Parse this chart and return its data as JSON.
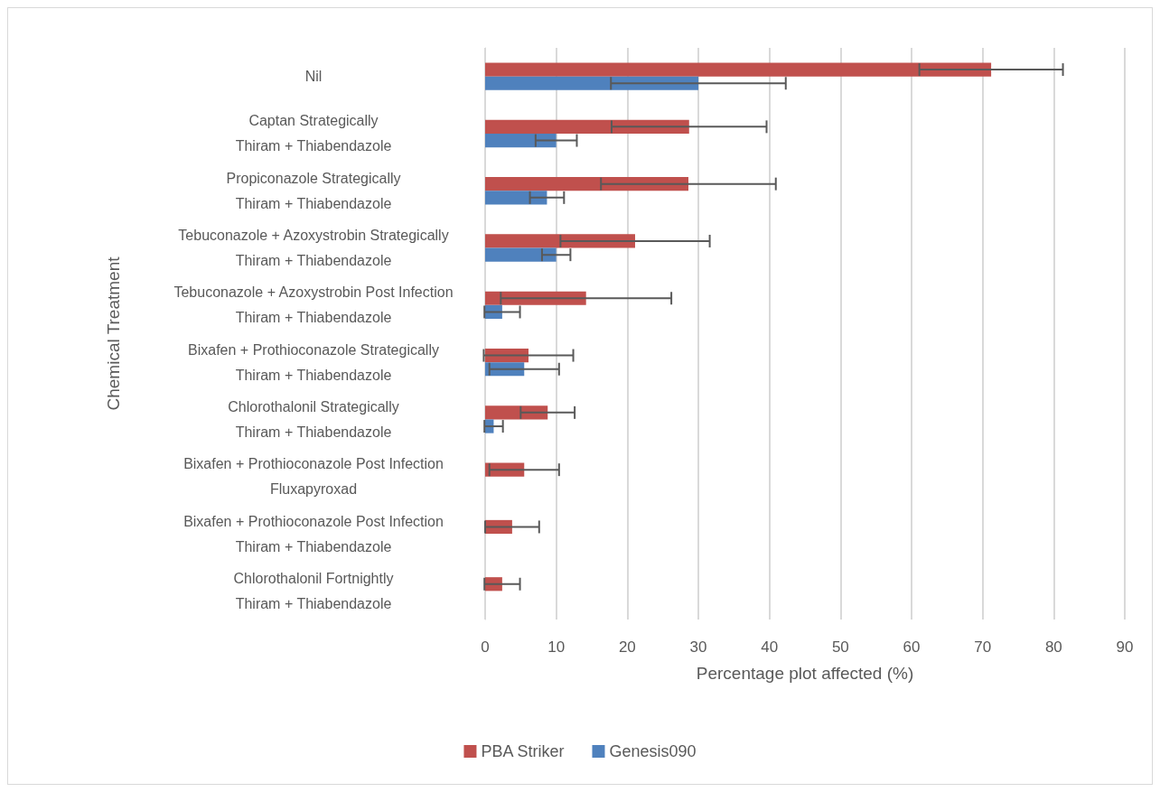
{
  "chart_data": {
    "type": "bar",
    "orientation": "horizontal",
    "xlabel": "Percentage plot affected (%)",
    "ylabel": "Chemical Treatment",
    "categories": [
      "Nil",
      "Captan Strategically\nThiram + Thiabendazole",
      "Propiconazole Strategically\nThiram + Thiabendazole",
      "Tebuconazole + Azoxystrobin Strategically\nThiram + Thiabendazole",
      "Tebuconazole + Azoxystrobin Post Infection\nThiram + Thiabendazole",
      "Bixafen + Prothioconazole Strategically\nThiram + Thiabendazole",
      "Chlorothalonil Strategically\nThiram + Thiabendazole",
      "Bixafen + Prothioconazole Post Infection\nFluxapyroxad",
      "Bixafen + Prothioconazole Post Infection\nThiram + Thiabendazole",
      "Chlorothalonil Fortnightly\nThiram + Thiabendazole"
    ],
    "series": [
      {
        "name": "PBA Striker",
        "color": "#c0504d",
        "values": [
          71.2,
          28.7,
          28.6,
          21.1,
          14.2,
          6.1,
          8.8,
          5.5,
          3.8,
          2.4
        ],
        "errors": [
          10.1,
          10.9,
          12.3,
          10.5,
          12,
          6.3,
          3.8,
          4.9,
          3.8,
          2.5
        ]
      },
      {
        "name": "Genesis090",
        "color": "#4f81bd",
        "values": [
          30,
          10,
          8.7,
          10,
          2.4,
          5.5,
          1.2,
          0,
          0,
          0
        ],
        "errors": [
          12.3,
          2.9,
          2.4,
          2,
          2.5,
          4.9,
          1.3,
          null,
          null,
          null
        ]
      }
    ],
    "xlim": [
      0,
      90
    ],
    "xticks": [
      0,
      10,
      20,
      30,
      40,
      50,
      60,
      70,
      80,
      90
    ],
    "grid": "x",
    "legend": "bottom"
  }
}
